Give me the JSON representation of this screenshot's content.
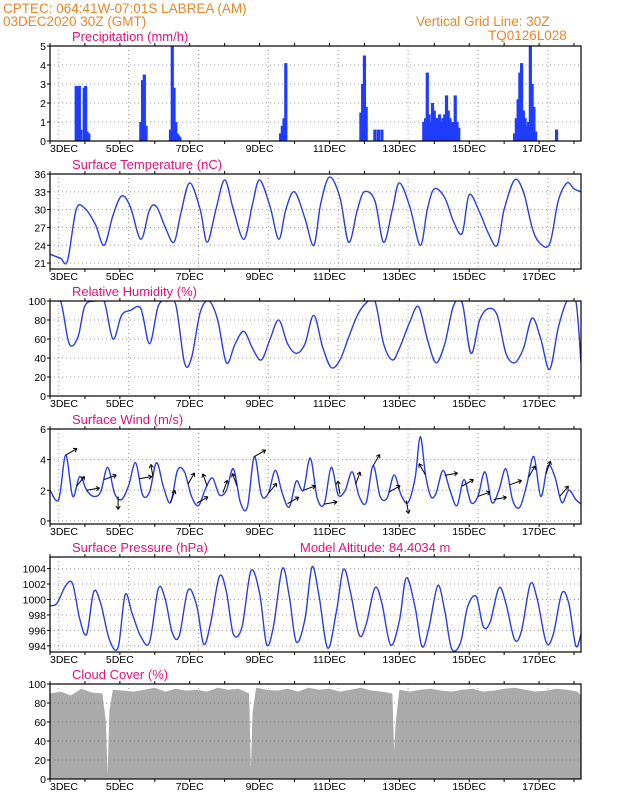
{
  "header": {
    "line1_left": "CPTEC:   064:41W-07:01S   LABREA  (AM)",
    "line2_left": "03DEC2020  30Z  (GMT)",
    "line2_right": "Vertical Grid Line: 30Z",
    "line3_right": "TQ0126L028"
  },
  "colors": {
    "header_text": "#e8862a",
    "panel_title": "#e0117f",
    "series_line": "#2b3fe0",
    "precip_bar": "#1f3cff",
    "cloud_fill": "#aaaaaa",
    "wind_arrow": "#000000",
    "grid": "#9a9a9a"
  },
  "x_axis": {
    "tick_labels": [
      "3DEC",
      "5DEC",
      "7DEC",
      "9DEC",
      "11DEC",
      "13DEC",
      "15DEC",
      "17DEC"
    ],
    "range_days": [
      3,
      18.2
    ],
    "vertical_grid_hour": "30Z"
  },
  "chart_data": [
    {
      "type": "bar",
      "title": "Precipitation (mm/h)",
      "ylim": [
        0,
        5
      ],
      "yticks": [
        "0",
        "1",
        "2",
        "3",
        "4",
        "5"
      ],
      "grid": true,
      "x_unit": "day of December 2020",
      "x": [
        3.75,
        3.79,
        3.84,
        3.88,
        3.98,
        4.02,
        4.06,
        4.11,
        5.6,
        5.65,
        5.7,
        5.75,
        6.45,
        6.5,
        6.55,
        6.6,
        6.64,
        6.68,
        6.72,
        9.6,
        9.65,
        9.7,
        9.75,
        11.9,
        11.95,
        12.0,
        12.05,
        12.3,
        12.4,
        12.5,
        13.7,
        13.75,
        13.8,
        13.85,
        13.9,
        13.95,
        14.0,
        14.05,
        14.1,
        14.15,
        14.2,
        14.25,
        14.3,
        14.35,
        14.4,
        14.45,
        14.5,
        14.55,
        14.6,
        14.65,
        14.7,
        16.3,
        16.35,
        16.4,
        16.45,
        16.5,
        16.55,
        16.6,
        16.65,
        16.7,
        16.75,
        16.8,
        16.85,
        16.9,
        17.5
      ],
      "values": [
        2.9,
        2.8,
        2.9,
        0.6,
        2.8,
        2.9,
        0.5,
        0.4,
        1.0,
        3.2,
        3.5,
        0.8,
        0.6,
        5.0,
        2.8,
        1.0,
        0.4,
        0.3,
        0.2,
        0.4,
        0.8,
        1.2,
        4.1,
        1.5,
        3.0,
        4.5,
        1.8,
        0.6,
        0.6,
        0.6,
        1.0,
        1.2,
        3.6,
        1.4,
        1.0,
        2.0,
        1.6,
        1.2,
        1.2,
        1.4,
        1.0,
        1.2,
        1.4,
        2.4,
        1.6,
        1.2,
        1.0,
        1.0,
        2.4,
        1.0,
        0.7,
        0.4,
        1.2,
        2.2,
        3.6,
        4.1,
        1.6,
        1.2,
        0.8,
        1.0,
        5.0,
        3.0,
        1.8,
        0.5,
        0.6
      ]
    },
    {
      "type": "line",
      "title": "Surface Temperature (nC)",
      "ylim": [
        20,
        36
      ],
      "yticks": [
        "21",
        "24",
        "27",
        "30",
        "33",
        "36"
      ],
      "grid": true,
      "x_unit": "day of December 2020",
      "x": [
        3.0,
        3.3,
        3.5,
        3.75,
        4.0,
        4.3,
        4.55,
        4.8,
        5.05,
        5.3,
        5.6,
        5.85,
        6.05,
        6.3,
        6.55,
        6.75,
        7.0,
        7.3,
        7.5,
        7.75,
        8.0,
        8.25,
        8.55,
        8.8,
        9.0,
        9.3,
        9.55,
        9.75,
        10.0,
        10.3,
        10.55,
        10.75,
        11.0,
        11.3,
        11.55,
        11.8,
        12.0,
        12.3,
        12.55,
        12.8,
        13.0,
        13.3,
        13.6,
        13.8,
        14.0,
        14.3,
        14.55,
        14.8,
        15.0,
        15.3,
        15.55,
        15.8,
        16.0,
        16.3,
        16.55,
        16.8,
        17.0,
        17.3,
        17.55,
        17.8,
        18.0,
        18.2
      ],
      "values": [
        22.5,
        21.8,
        21.4,
        30.0,
        30.2,
        27.5,
        24.0,
        29.0,
        32.3,
        30.5,
        25.0,
        30.0,
        30.5,
        27.0,
        24.5,
        29.5,
        34.5,
        30.0,
        24.5,
        30.0,
        35.0,
        30.0,
        25.0,
        31.0,
        35.0,
        30.5,
        25.0,
        30.0,
        33.0,
        28.5,
        24.0,
        31.0,
        35.5,
        32.0,
        24.5,
        30.0,
        33.0,
        31.5,
        24.5,
        30.0,
        34.5,
        30.5,
        24.0,
        30.0,
        33.5,
        32.0,
        28.0,
        26.0,
        32.5,
        29.5,
        26.0,
        24.0,
        30.0,
        35.0,
        33.0,
        27.0,
        24.5,
        24.2,
        31.5,
        34.5,
        33.5,
        33.0
      ]
    },
    {
      "type": "line",
      "title": "Relative Humidity (%)",
      "ylim": [
        0,
        100
      ],
      "yticks": [
        "0",
        "20",
        "40",
        "60",
        "80",
        "100"
      ],
      "grid": true,
      "x_unit": "day of December 2020",
      "x": [
        3.0,
        3.3,
        3.55,
        3.8,
        4.0,
        4.3,
        4.55,
        4.8,
        5.05,
        5.3,
        5.6,
        5.85,
        6.1,
        6.35,
        6.6,
        6.85,
        7.05,
        7.3,
        7.55,
        7.8,
        8.05,
        8.3,
        8.55,
        8.8,
        9.05,
        9.3,
        9.55,
        9.8,
        10.05,
        10.3,
        10.55,
        10.8,
        11.05,
        11.3,
        11.55,
        11.8,
        12.05,
        12.3,
        12.55,
        12.8,
        13.0,
        13.3,
        13.55,
        13.8,
        14.05,
        14.3,
        14.55,
        14.8,
        15.05,
        15.3,
        15.55,
        15.8,
        16.05,
        16.3,
        16.55,
        16.8,
        17.05,
        17.3,
        17.55,
        17.8,
        18.05,
        18.2
      ],
      "values": [
        100,
        100,
        55,
        62,
        95,
        100,
        100,
        60,
        85,
        90,
        92,
        55,
        95,
        100,
        96,
        35,
        40,
        88,
        100,
        80,
        35,
        55,
        68,
        50,
        38,
        60,
        80,
        55,
        45,
        55,
        85,
        52,
        30,
        38,
        62,
        85,
        98,
        100,
        55,
        38,
        50,
        78,
        94,
        60,
        35,
        55,
        95,
        98,
        45,
        80,
        92,
        85,
        45,
        35,
        50,
        82,
        60,
        28,
        72,
        100,
        100,
        35
      ]
    },
    {
      "type": "line",
      "title": "Surface Wind (m/s)",
      "ylim": [
        -0.2,
        6
      ],
      "yticks": [
        "0",
        "2",
        "4",
        "6"
      ],
      "grid": true,
      "x_unit": "day of December 2020",
      "x": [
        3.0,
        3.25,
        3.45,
        3.65,
        3.85,
        4.05,
        4.25,
        4.45,
        4.65,
        4.85,
        5.05,
        5.25,
        5.45,
        5.65,
        5.85,
        6.05,
        6.25,
        6.45,
        6.65,
        6.85,
        7.05,
        7.25,
        7.45,
        7.65,
        7.85,
        8.05,
        8.25,
        8.45,
        8.65,
        8.85,
        9.05,
        9.25,
        9.45,
        9.65,
        9.85,
        10.05,
        10.25,
        10.45,
        10.65,
        10.85,
        11.05,
        11.25,
        11.45,
        11.65,
        11.85,
        12.05,
        12.25,
        12.45,
        12.65,
        12.85,
        13.05,
        13.25,
        13.45,
        13.6,
        13.75,
        13.9,
        14.05,
        14.25,
        14.45,
        14.65,
        14.85,
        15.05,
        15.25,
        15.45,
        15.65,
        15.85,
        16.05,
        16.25,
        16.45,
        16.65,
        16.85,
        17.05,
        17.25,
        17.45,
        17.65,
        17.85,
        18.05,
        18.2
      ],
      "values": [
        2.0,
        1.4,
        4.3,
        1.6,
        2.9,
        2.0,
        1.6,
        1.9,
        3.5,
        1.8,
        1.4,
        2.3,
        3.8,
        1.7,
        1.9,
        3.8,
        2.2,
        1.2,
        3.3,
        3.2,
        1.6,
        1.0,
        2.1,
        2.8,
        1.7,
        2.0,
        3.4,
        1.2,
        0.9,
        4.2,
        1.7,
        1.8,
        3.3,
        1.8,
        0.9,
        2.6,
        2.0,
        4.1,
        1.5,
        1.1,
        3.5,
        1.7,
        2.0,
        3.2,
        1.6,
        1.2,
        3.6,
        1.6,
        1.5,
        3.0,
        1.7,
        1.2,
        2.8,
        5.5,
        3.0,
        1.6,
        1.8,
        3.3,
        2.0,
        1.0,
        2.7,
        1.2,
        1.6,
        3.2,
        1.2,
        2.0,
        3.4,
        1.3,
        0.9,
        2.4,
        4.2,
        1.6,
        3.6,
        2.9,
        1.2,
        2.0,
        1.4,
        1.1
      ]
    },
    {
      "type": "line",
      "title": "Surface Pressure (hPa)",
      "ylim": [
        993.2,
        1005.5
      ],
      "yticks": [
        "994",
        "996",
        "998",
        "1000",
        "1002",
        "1004"
      ],
      "grid": true,
      "x_unit": "day of December 2020",
      "x": [
        3.0,
        3.2,
        3.45,
        3.65,
        3.85,
        4.05,
        4.25,
        4.45,
        4.7,
        4.95,
        5.15,
        5.35,
        5.6,
        5.85,
        6.1,
        6.3,
        6.5,
        6.7,
        6.95,
        7.2,
        7.4,
        7.6,
        7.85,
        8.05,
        8.25,
        8.5,
        8.75,
        9.0,
        9.2,
        9.4,
        9.65,
        9.85,
        10.05,
        10.3,
        10.5,
        10.7,
        10.95,
        11.2,
        11.4,
        11.6,
        11.85,
        12.05,
        12.3,
        12.5,
        12.75,
        13.0,
        13.2,
        13.45,
        13.65,
        13.85,
        14.1,
        14.3,
        14.5,
        14.75,
        14.95,
        15.2,
        15.4,
        15.6,
        15.85,
        16.05,
        16.3,
        16.5,
        16.75,
        16.95,
        17.2,
        17.4,
        17.65,
        17.85,
        18.05,
        18.2
      ],
      "values": [
        999.2,
        999.5,
        1001.8,
        1002.0,
        997.5,
        995.5,
        1001.0,
        999.5,
        994.8,
        993.8,
        1000.6,
        998.2,
        995.2,
        994.5,
        1001.4,
        1000.0,
        995.7,
        995.3,
        1001.2,
        999.2,
        994.2,
        997.0,
        1003.0,
        1001.0,
        995.5,
        996.5,
        1003.7,
        1000.8,
        994.2,
        996.6,
        1004.0,
        1000.4,
        994.5,
        997.5,
        1004.2,
        1000.5,
        993.7,
        998.5,
        1003.9,
        1001.0,
        995.4,
        996.8,
        1001.5,
        999.5,
        994.1,
        997.2,
        1002.8,
        999.0,
        993.9,
        996.4,
        1001.8,
        998.5,
        993.6,
        994.4,
        999.0,
        1000.4,
        996.5,
        997.1,
        1001.5,
        999.5,
        994.8,
        996.0,
        1002.0,
        1000.0,
        994.5,
        995.4,
        1000.8,
        999.5,
        994.0,
        995.5
      ]
    },
    {
      "type": "area",
      "title": "Cloud Cover (%)",
      "ylim": [
        0,
        100
      ],
      "yticks": [
        "0",
        "20",
        "40",
        "60",
        "80",
        "100"
      ],
      "grid": true,
      "x_unit": "day of December 2020",
      "x": [
        3.0,
        3.3,
        3.6,
        3.9,
        4.2,
        4.5,
        4.6,
        4.65,
        4.7,
        4.8,
        5.1,
        5.4,
        5.7,
        6.0,
        6.3,
        6.6,
        6.9,
        7.2,
        7.5,
        7.8,
        8.1,
        8.4,
        8.7,
        8.75,
        8.8,
        8.9,
        9.2,
        9.5,
        9.8,
        10.1,
        10.4,
        10.7,
        11.0,
        11.3,
        11.6,
        11.9,
        12.2,
        12.5,
        12.8,
        12.85,
        12.9,
        13.0,
        13.3,
        13.6,
        13.9,
        14.2,
        14.5,
        14.8,
        15.1,
        15.4,
        15.7,
        16.0,
        16.3,
        16.6,
        16.9,
        17.2,
        17.5,
        17.8,
        18.1,
        18.2
      ],
      "values": [
        90,
        92,
        88,
        95,
        91,
        90,
        60,
        5,
        72,
        94,
        93,
        92,
        94,
        96,
        92,
        95,
        93,
        94,
        92,
        96,
        94,
        95,
        90,
        10,
        70,
        96,
        94,
        93,
        95,
        92,
        96,
        94,
        95,
        92,
        94,
        96,
        93,
        92,
        90,
        30,
        60,
        94,
        92,
        94,
        95,
        93,
        92,
        94,
        95,
        92,
        93,
        95,
        96,
        94,
        92,
        93,
        95,
        94,
        92,
        88
      ]
    },
    {
      "type": "text",
      "title": "Model Altitude: 84.4034 m"
    }
  ],
  "wind_arrows": [
    {
      "x": 3.45,
      "dir_deg": 60
    },
    {
      "x": 3.75,
      "dir_deg": 40
    },
    {
      "x": 4.05,
      "dir_deg": 80
    },
    {
      "x": 4.55,
      "dir_deg": 70
    },
    {
      "x": 4.95,
      "dir_deg": 180
    },
    {
      "x": 5.55,
      "dir_deg": 80
    },
    {
      "x": 5.95,
      "dir_deg": 350
    },
    {
      "x": 6.45,
      "dir_deg": 20
    },
    {
      "x": 6.95,
      "dir_deg": 30
    },
    {
      "x": 7.2,
      "dir_deg": 60
    },
    {
      "x": 7.5,
      "dir_deg": 340
    },
    {
      "x": 7.95,
      "dir_deg": 20
    },
    {
      "x": 8.35,
      "dir_deg": 340
    },
    {
      "x": 8.85,
      "dir_deg": 60
    },
    {
      "x": 9.25,
      "dir_deg": 40
    },
    {
      "x": 9.8,
      "dir_deg": 60
    },
    {
      "x": 10.25,
      "dir_deg": 70
    },
    {
      "x": 10.85,
      "dir_deg": 80
    },
    {
      "x": 11.3,
      "dir_deg": 350
    },
    {
      "x": 11.75,
      "dir_deg": 20
    },
    {
      "x": 12.25,
      "dir_deg": 30
    },
    {
      "x": 12.7,
      "dir_deg": 60
    },
    {
      "x": 13.2,
      "dir_deg": 170
    },
    {
      "x": 13.75,
      "dir_deg": 330
    },
    {
      "x": 14.3,
      "dir_deg": 80
    },
    {
      "x": 14.8,
      "dir_deg": 60
    },
    {
      "x": 15.25,
      "dir_deg": 70
    },
    {
      "x": 15.7,
      "dir_deg": 80
    },
    {
      "x": 16.15,
      "dir_deg": 70
    },
    {
      "x": 16.7,
      "dir_deg": 30
    },
    {
      "x": 17.2,
      "dir_deg": 20
    },
    {
      "x": 17.6,
      "dir_deg": 40
    }
  ]
}
